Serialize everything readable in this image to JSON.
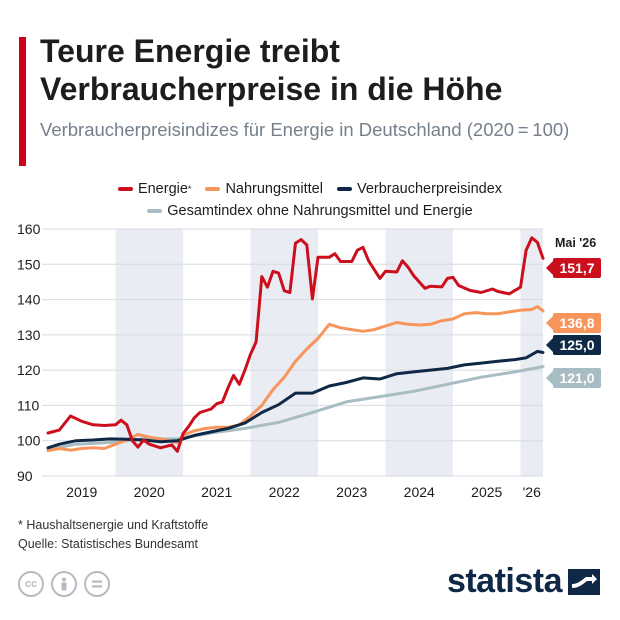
{
  "header": {
    "title": "Teure Energie treibt Verbraucherpreise in die Höhe",
    "subtitle": "Verbraucherpreisindizes für Energie in Deutschland (2020 = 100)"
  },
  "colors": {
    "accent": "#d0021b",
    "grid": "#d7dbe0",
    "band": "#e9ecf2",
    "axis_text": "#1d1d1d"
  },
  "chart_data": {
    "type": "line",
    "title": "Teure Energie treibt Verbraucherpreise in die Höhe",
    "subtitle": "Verbraucherpreisindizes für Energie in Deutschland (2020 = 100)",
    "xlabel": "",
    "ylabel": "",
    "ylim": [
      90,
      160
    ],
    "yticks": [
      90,
      100,
      110,
      120,
      130,
      140,
      150,
      160
    ],
    "xlim": [
      "2019-01",
      "2026-05"
    ],
    "x_tick_labels": [
      "2019",
      "2020",
      "2021",
      "2022",
      "2023",
      "2024",
      "2025",
      "'26"
    ],
    "end_label": "Mai '26",
    "grid": true,
    "legend_position": "top",
    "shaded_years": [
      "2020",
      "2022",
      "2024",
      "'26"
    ],
    "series": [
      {
        "name": "Energie",
        "legend_marker": "*",
        "color": "#cc0f1d",
        "end_value_label": "151,7",
        "points": [
          [
            "2019-01",
            102.2
          ],
          [
            "2019-03",
            103.0
          ],
          [
            "2019-05",
            107.0
          ],
          [
            "2019-07",
            105.5
          ],
          [
            "2019-09",
            104.5
          ],
          [
            "2019-11",
            104.3
          ],
          [
            "2020-01",
            104.5
          ],
          [
            "2020-02",
            105.8
          ],
          [
            "2020-03",
            104.5
          ],
          [
            "2020-04",
            100.0
          ],
          [
            "2020-05",
            98.2
          ],
          [
            "2020-06",
            100.2
          ],
          [
            "2020-07",
            99.0
          ],
          [
            "2020-09",
            98.0
          ],
          [
            "2020-11",
            98.8
          ],
          [
            "2020-12",
            97.0
          ],
          [
            "2021-01",
            102.0
          ],
          [
            "2021-02",
            104.0
          ],
          [
            "2021-03",
            106.5
          ],
          [
            "2021-04",
            108.0
          ],
          [
            "2021-06",
            109.0
          ],
          [
            "2021-07",
            110.5
          ],
          [
            "2021-08",
            111.0
          ],
          [
            "2021-09",
            115.0
          ],
          [
            "2021-10",
            118.5
          ],
          [
            "2021-11",
            116.0
          ],
          [
            "2021-12",
            120.0
          ],
          [
            "2022-01",
            124.5
          ],
          [
            "2022-02",
            128.0
          ],
          [
            "2022-03",
            146.5
          ],
          [
            "2022-04",
            143.5
          ],
          [
            "2022-05",
            148.0
          ],
          [
            "2022-06",
            147.5
          ],
          [
            "2022-07",
            142.5
          ],
          [
            "2022-08",
            142.0
          ],
          [
            "2022-09",
            156.0
          ],
          [
            "2022-10",
            157.0
          ],
          [
            "2022-11",
            155.5
          ],
          [
            "2022-12",
            140.2
          ],
          [
            "2023-01",
            152.0
          ],
          [
            "2023-03",
            152.0
          ],
          [
            "2023-04",
            153.0
          ],
          [
            "2023-05",
            150.8
          ],
          [
            "2023-07",
            150.8
          ],
          [
            "2023-08",
            154.0
          ],
          [
            "2023-09",
            154.8
          ],
          [
            "2023-10",
            151.0
          ],
          [
            "2023-12",
            146.0
          ],
          [
            "2024-01",
            148.0
          ],
          [
            "2024-03",
            147.8
          ],
          [
            "2024-04",
            151.0
          ],
          [
            "2024-05",
            149.2
          ],
          [
            "2024-06",
            146.8
          ],
          [
            "2024-08",
            143.2
          ],
          [
            "2024-09",
            143.8
          ],
          [
            "2024-11",
            143.6
          ],
          [
            "2024-12",
            146.0
          ],
          [
            "2025-01",
            146.3
          ],
          [
            "2025-02",
            144.0
          ],
          [
            "2025-04",
            142.6
          ],
          [
            "2025-06",
            142.0
          ],
          [
            "2025-08",
            143.0
          ],
          [
            "2025-09",
            142.3
          ],
          [
            "2025-11",
            141.6
          ],
          [
            "2025-12",
            142.6
          ],
          [
            "2026-01",
            143.5
          ],
          [
            "2026-02",
            154.0
          ],
          [
            "2026-03",
            157.5
          ],
          [
            "2026-04",
            156.2
          ],
          [
            "2026-05",
            151.7
          ]
        ]
      },
      {
        "name": "Nahrungsmittel",
        "color": "#f7955c",
        "end_value_label": "136,8",
        "points": [
          [
            "2019-01",
            97.2
          ],
          [
            "2019-03",
            97.8
          ],
          [
            "2019-05",
            97.3
          ],
          [
            "2019-07",
            97.8
          ],
          [
            "2019-09",
            98.0
          ],
          [
            "2019-11",
            97.8
          ],
          [
            "2020-01",
            99.0
          ],
          [
            "2020-03",
            100.2
          ],
          [
            "2020-05",
            101.8
          ],
          [
            "2020-07",
            101.0
          ],
          [
            "2020-09",
            100.5
          ],
          [
            "2020-11",
            99.8
          ],
          [
            "2020-12",
            99.5
          ],
          [
            "2021-01",
            101.5
          ],
          [
            "2021-03",
            102.8
          ],
          [
            "2021-05",
            103.5
          ],
          [
            "2021-07",
            103.8
          ],
          [
            "2021-09",
            103.8
          ],
          [
            "2021-11",
            104.5
          ],
          [
            "2022-01",
            107.0
          ],
          [
            "2022-03",
            110.0
          ],
          [
            "2022-05",
            114.5
          ],
          [
            "2022-07",
            118.0
          ],
          [
            "2022-09",
            122.5
          ],
          [
            "2022-11",
            126.0
          ],
          [
            "2023-01",
            129.0
          ],
          [
            "2023-03",
            133.0
          ],
          [
            "2023-05",
            132.0
          ],
          [
            "2023-07",
            131.5
          ],
          [
            "2023-09",
            131.0
          ],
          [
            "2023-11",
            131.5
          ],
          [
            "2024-01",
            132.5
          ],
          [
            "2024-03",
            133.5
          ],
          [
            "2024-05",
            133.0
          ],
          [
            "2024-07",
            132.8
          ],
          [
            "2024-09",
            133.0
          ],
          [
            "2024-11",
            134.0
          ],
          [
            "2025-01",
            134.5
          ],
          [
            "2025-03",
            136.0
          ],
          [
            "2025-05",
            136.3
          ],
          [
            "2025-07",
            136.0
          ],
          [
            "2025-09",
            136.0
          ],
          [
            "2025-11",
            136.5
          ],
          [
            "2026-01",
            137.0
          ],
          [
            "2026-03",
            137.2
          ],
          [
            "2026-04",
            138.0
          ],
          [
            "2026-05",
            136.8
          ]
        ]
      },
      {
        "name": "Verbraucherpreisindex",
        "color": "#0f2846",
        "end_value_label": "125,0",
        "points": [
          [
            "2019-01",
            98.0
          ],
          [
            "2019-03",
            99.0
          ],
          [
            "2019-06",
            100.0
          ],
          [
            "2019-09",
            100.2
          ],
          [
            "2019-12",
            100.5
          ],
          [
            "2020-03",
            100.4
          ],
          [
            "2020-06",
            100.2
          ],
          [
            "2020-09",
            99.7
          ],
          [
            "2020-12",
            100.0
          ],
          [
            "2021-03",
            101.5
          ],
          [
            "2021-06",
            102.5
          ],
          [
            "2021-09",
            103.5
          ],
          [
            "2021-12",
            105.0
          ],
          [
            "2022-03",
            108.0
          ],
          [
            "2022-06",
            110.2
          ],
          [
            "2022-09",
            113.5
          ],
          [
            "2022-12",
            113.5
          ],
          [
            "2023-03",
            115.5
          ],
          [
            "2023-06",
            116.5
          ],
          [
            "2023-09",
            117.8
          ],
          [
            "2023-12",
            117.5
          ],
          [
            "2024-03",
            119.0
          ],
          [
            "2024-06",
            119.5
          ],
          [
            "2024-09",
            120.0
          ],
          [
            "2024-12",
            120.5
          ],
          [
            "2025-03",
            121.5
          ],
          [
            "2025-06",
            122.0
          ],
          [
            "2025-09",
            122.5
          ],
          [
            "2025-12",
            123.0
          ],
          [
            "2026-02",
            123.5
          ],
          [
            "2026-04",
            125.3
          ],
          [
            "2026-05",
            125.0
          ]
        ]
      },
      {
        "name": "Gesamtindex ohne Nahrungsmittel und Energie",
        "color": "#a8bcc4",
        "end_value_label": "121,0",
        "points": [
          [
            "2019-01",
            97.5
          ],
          [
            "2019-06",
            99.0
          ],
          [
            "2019-12",
            99.5
          ],
          [
            "2020-06",
            100.5
          ],
          [
            "2020-12",
            100.5
          ],
          [
            "2021-06",
            102.2
          ],
          [
            "2021-12",
            103.5
          ],
          [
            "2022-06",
            105.2
          ],
          [
            "2022-12",
            108.0
          ],
          [
            "2023-06",
            111.0
          ],
          [
            "2023-12",
            112.5
          ],
          [
            "2024-06",
            114.0
          ],
          [
            "2024-12",
            116.0
          ],
          [
            "2025-06",
            118.0
          ],
          [
            "2025-12",
            119.5
          ],
          [
            "2026-05",
            121.0
          ]
        ]
      }
    ]
  },
  "footnote": "* Haushaltsenergie und Kraftstoffe",
  "source": "Quelle: Statistisches Bundesamt",
  "license_icons": [
    "cc-icon",
    "person-icon",
    "equals-icon"
  ],
  "brand": "statista"
}
